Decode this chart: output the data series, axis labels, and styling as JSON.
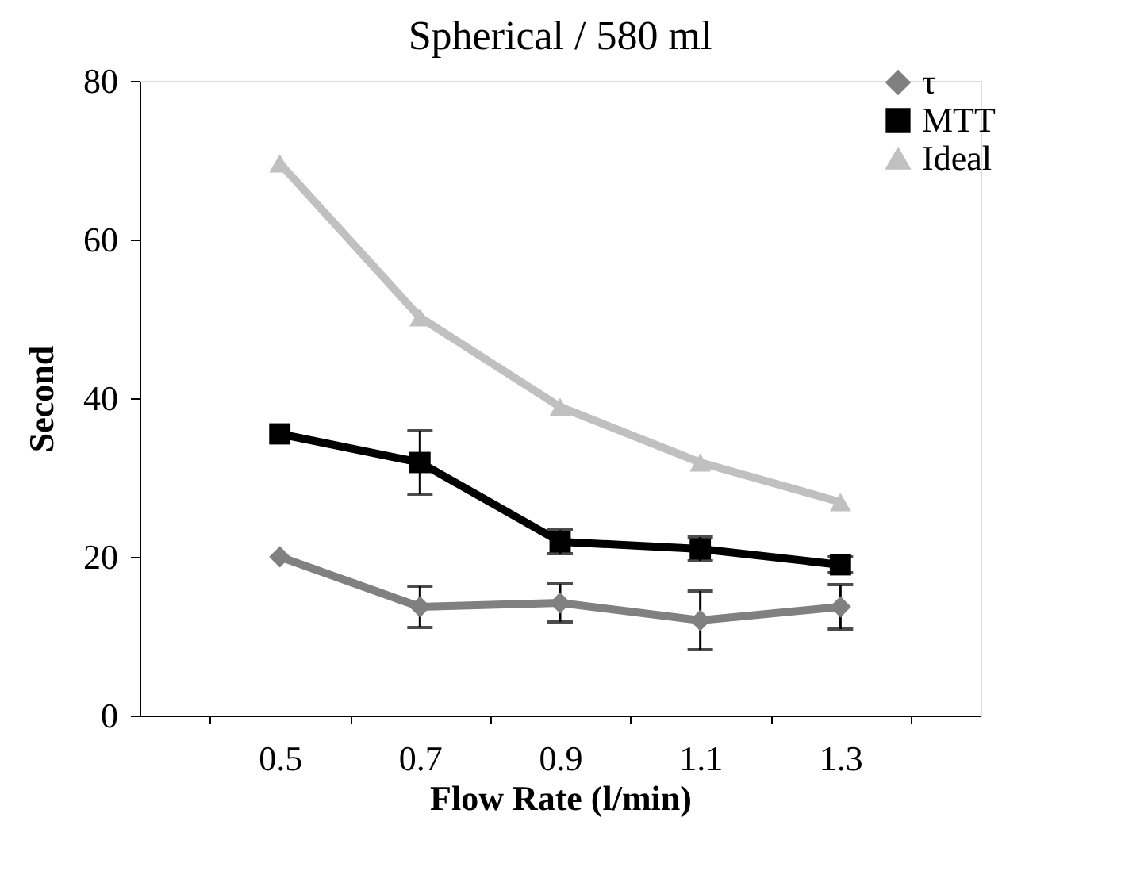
{
  "chart_data": {
    "type": "line",
    "title": "Spherical / 580 ml",
    "xlabel": "Flow Rate (l/min)",
    "ylabel": "Second",
    "categories": [
      "0.5",
      "0.7",
      "0.9",
      "1.1",
      "1.3"
    ],
    "series": [
      {
        "name": "τ",
        "color": "#808080",
        "marker": "diamond",
        "values": [
          20,
          13.7,
          14.2,
          12,
          13.7
        ],
        "errors": [
          null,
          2.6,
          2.4,
          3.7,
          2.8
        ]
      },
      {
        "name": "MTT",
        "color": "#000000",
        "marker": "square",
        "values": [
          35.5,
          31.9,
          21.9,
          21,
          19
        ],
        "errors": [
          null,
          4,
          1.5,
          1.5,
          1
        ]
      },
      {
        "name": "Ideal",
        "color": "#c0c0c0",
        "marker": "triangle",
        "values": [
          69.6,
          50.2,
          38.9,
          31.9,
          26.9
        ]
      }
    ],
    "ylim": [
      0,
      80
    ],
    "yticks": [
      0,
      20,
      40,
      60,
      80
    ],
    "grid": false,
    "legend": "top right",
    "line_style": "solid"
  }
}
